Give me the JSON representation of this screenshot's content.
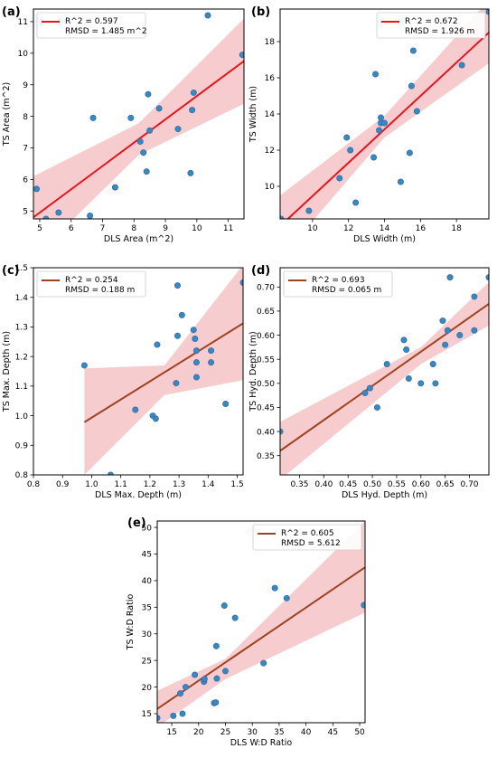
{
  "chart_data": [
    {
      "panel": "(a)",
      "type": "scatter",
      "xlabel": "DLS Area (m^2)",
      "ylabel": "TS Area (m^2)",
      "xlim": [
        4.8,
        11.5
      ],
      "ylim": [
        4.75,
        11.4
      ],
      "xticks": [
        5,
        6,
        7,
        8,
        9,
        10,
        11
      ],
      "yticks": [
        5,
        6,
        7,
        8,
        9,
        10,
        11
      ],
      "legend_position": "top-left",
      "legend": [
        "R^2 = 0.597",
        "RMSD = 1.485 m^2"
      ],
      "line_color": "#e8141c",
      "points": [
        [
          4.9,
          5.7
        ],
        [
          5.2,
          4.75
        ],
        [
          5.6,
          4.95
        ],
        [
          6.6,
          4.85
        ],
        [
          6.7,
          7.95
        ],
        [
          7.4,
          5.75
        ],
        [
          7.9,
          7.95
        ],
        [
          8.2,
          7.2
        ],
        [
          8.3,
          6.85
        ],
        [
          8.4,
          6.25
        ],
        [
          8.45,
          8.7
        ],
        [
          8.5,
          7.55
        ],
        [
          8.8,
          8.25
        ],
        [
          9.4,
          7.6
        ],
        [
          9.8,
          6.2
        ],
        [
          9.85,
          8.2
        ],
        [
          9.9,
          8.75
        ],
        [
          10.35,
          11.2
        ],
        [
          11.45,
          9.95
        ]
      ],
      "fit": [
        [
          4.8,
          4.8
        ],
        [
          11.5,
          9.75
        ]
      ],
      "band_upper": [
        [
          4.8,
          6.1
        ],
        [
          8.15,
          7.78
        ],
        [
          11.5,
          11.1
        ]
      ],
      "band_lower": [
        [
          4.8,
          3.5
        ],
        [
          8.15,
          6.78
        ],
        [
          11.5,
          8.4
        ]
      ]
    },
    {
      "panel": "(b)",
      "type": "scatter",
      "xlabel": "DLS Width (m)",
      "ylabel": "TS Width (m)",
      "xlim": [
        8.2,
        19.8
      ],
      "ylim": [
        8.2,
        19.8
      ],
      "xticks": [
        10,
        12,
        14,
        16,
        18
      ],
      "yticks": [
        10,
        12,
        14,
        16,
        18
      ],
      "legend_position": "top-right",
      "legend": [
        "R^2 = 0.672",
        "RMSD = 1.926 m"
      ],
      "line_color": "#e8141c",
      "points": [
        [
          8.25,
          8.2
        ],
        [
          9.8,
          8.65
        ],
        [
          11.5,
          10.45
        ],
        [
          11.9,
          12.7
        ],
        [
          12.1,
          12.0
        ],
        [
          12.4,
          9.1
        ],
        [
          13.4,
          11.6
        ],
        [
          13.5,
          16.2
        ],
        [
          13.7,
          13.1
        ],
        [
          13.8,
          13.8
        ],
        [
          13.8,
          13.5
        ],
        [
          14.0,
          13.5
        ],
        [
          14.9,
          10.25
        ],
        [
          15.4,
          11.85
        ],
        [
          15.5,
          15.55
        ],
        [
          15.6,
          17.5
        ],
        [
          15.8,
          14.15
        ],
        [
          18.3,
          16.7
        ],
        [
          19.8,
          19.65
        ]
      ],
      "fit": [
        [
          8.2,
          7.8
        ],
        [
          19.8,
          18.5
        ]
      ],
      "band_upper": [
        [
          8.2,
          9.5
        ],
        [
          14.0,
          13.9
        ],
        [
          19.8,
          20.3
        ]
      ],
      "band_lower": [
        [
          8.2,
          6.0
        ],
        [
          14.0,
          12.7
        ],
        [
          19.8,
          16.8
        ]
      ]
    },
    {
      "panel": "(c)",
      "type": "scatter",
      "xlabel": "DLS Max. Depth (m)",
      "ylabel": "TS Max. Depth (m)",
      "xlim": [
        0.8,
        1.52
      ],
      "ylim": [
        0.8,
        1.5
      ],
      "xticks": [
        "0.8",
        "0.9",
        "1.0",
        "1.1",
        "1.2",
        "1.3",
        "1.4",
        "1.5"
      ],
      "yticks": [
        "0.8",
        "0.9",
        "1.0",
        "1.1",
        "1.2",
        "1.3",
        "1.4",
        "1.5"
      ],
      "legend_position": "top-left",
      "legend": [
        "R^2 = 0.254",
        "RMSD = 0.188 m"
      ],
      "line_color": "#a0421e",
      "points": [
        [
          0.975,
          1.17
        ],
        [
          1.065,
          0.8
        ],
        [
          1.15,
          1.02
        ],
        [
          1.21,
          1.0
        ],
        [
          1.22,
          0.99
        ],
        [
          1.225,
          1.24
        ],
        [
          1.29,
          1.11
        ],
        [
          1.295,
          1.44
        ],
        [
          1.295,
          1.27
        ],
        [
          1.31,
          1.34
        ],
        [
          1.35,
          1.29
        ],
        [
          1.355,
          1.26
        ],
        [
          1.36,
          1.13
        ],
        [
          1.36,
          1.18
        ],
        [
          1.36,
          1.22
        ],
        [
          1.41,
          1.18
        ],
        [
          1.41,
          1.22
        ],
        [
          1.46,
          1.04
        ],
        [
          1.52,
          1.45
        ]
      ],
      "fit": [
        [
          0.975,
          0.978
        ],
        [
          1.52,
          1.312
        ]
      ],
      "band_upper": [
        [
          0.975,
          1.16
        ],
        [
          1.25,
          1.17
        ],
        [
          1.52,
          1.51
        ]
      ],
      "band_lower": [
        [
          0.975,
          0.8
        ],
        [
          1.25,
          1.07
        ],
        [
          1.52,
          1.12
        ]
      ]
    },
    {
      "panel": "(d)",
      "type": "scatter",
      "xlabel": "DLS Hyd. Depth (m)",
      "ylabel": "TS Hyd. Depth (m)",
      "xlim": [
        0.31,
        0.74
      ],
      "ylim": [
        0.31,
        0.74
      ],
      "xticks": [
        "0.35",
        "0.40",
        "0.45",
        "0.50",
        "0.55",
        "0.60",
        "0.65",
        "0.70"
      ],
      "yticks": [
        "0.35",
        "0.40",
        "0.45",
        "0.50",
        "0.55",
        "0.60",
        "0.65",
        "0.70"
      ],
      "legend_position": "top-left",
      "legend": [
        "R^2 = 0.693",
        "RMSD = 0.065 m"
      ],
      "line_color": "#a0421e",
      "points": [
        [
          0.31,
          0.4
        ],
        [
          0.485,
          0.48
        ],
        [
          0.495,
          0.49
        ],
        [
          0.51,
          0.45
        ],
        [
          0.53,
          0.54
        ],
        [
          0.565,
          0.59
        ],
        [
          0.57,
          0.57
        ],
        [
          0.575,
          0.51
        ],
        [
          0.6,
          0.5
        ],
        [
          0.625,
          0.54
        ],
        [
          0.63,
          0.5
        ],
        [
          0.645,
          0.63
        ],
        [
          0.65,
          0.58
        ],
        [
          0.655,
          0.61
        ],
        [
          0.66,
          0.72
        ],
        [
          0.68,
          0.6
        ],
        [
          0.71,
          0.68
        ],
        [
          0.71,
          0.61
        ],
        [
          0.74,
          0.72
        ]
      ],
      "fit": [
        [
          0.31,
          0.36
        ],
        [
          0.74,
          0.665
        ]
      ],
      "band_upper": [
        [
          0.31,
          0.42
        ],
        [
          0.6,
          0.575
        ],
        [
          0.74,
          0.71
        ]
      ],
      "band_lower": [
        [
          0.31,
          0.3
        ],
        [
          0.6,
          0.54
        ],
        [
          0.74,
          0.62
        ]
      ]
    },
    {
      "panel": "(e)",
      "type": "scatter",
      "xlabel": "DLS W:D Ratio",
      "ylabel": "TS W:D Ratio",
      "xlim": [
        12.3,
        51
      ],
      "ylim": [
        13.3,
        51.2
      ],
      "xticks": [
        15,
        20,
        25,
        30,
        35,
        40,
        45,
        50
      ],
      "yticks": [
        15,
        20,
        25,
        30,
        35,
        40,
        45,
        50
      ],
      "legend_position": "top-right",
      "legend": [
        "R^2 = 0.605",
        "RMSD = 5.612"
      ],
      "line_color": "#a0421e",
      "points": [
        [
          12.3,
          14.2
        ],
        [
          15.3,
          14.6
        ],
        [
          16.6,
          18.8
        ],
        [
          17.0,
          15.0
        ],
        [
          17.6,
          20.0
        ],
        [
          19.3,
          22.3
        ],
        [
          21.0,
          21.0
        ],
        [
          21.1,
          21.5
        ],
        [
          22.9,
          17.0
        ],
        [
          23.2,
          17.1
        ],
        [
          23.3,
          27.7
        ],
        [
          23.4,
          21.6
        ],
        [
          24.8,
          35.3
        ],
        [
          25.0,
          23.0
        ],
        [
          26.8,
          33.0
        ],
        [
          32.1,
          24.5
        ],
        [
          34.2,
          38.6
        ],
        [
          36.4,
          36.7
        ],
        [
          50.8,
          35.4
        ]
      ],
      "fit": [
        [
          12.3,
          15.9
        ],
        [
          51,
          42.5
        ]
      ],
      "band_upper": [
        [
          12.3,
          19.3
        ],
        [
          25,
          25.3
        ],
        [
          51,
          51.2
        ]
      ],
      "band_lower": [
        [
          12.3,
          12.5
        ],
        [
          25,
          21.5
        ],
        [
          51,
          34.0
        ]
      ]
    }
  ],
  "style": {
    "point_color": "#2c8fc4",
    "point_edge": "#4563a8",
    "band_color": "#f6c3c6"
  }
}
